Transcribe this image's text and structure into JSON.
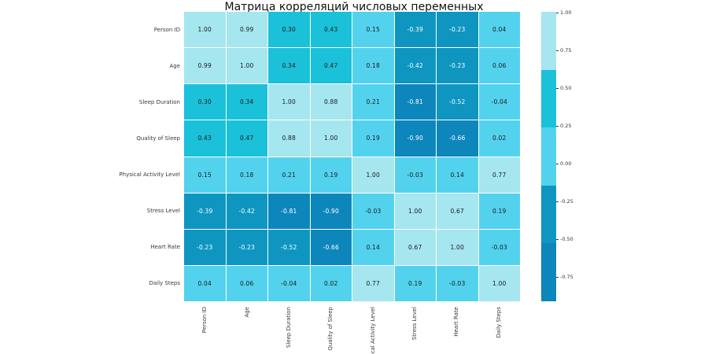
{
  "title": "Матрица корреляций числовых переменных",
  "colors": {
    "background": "#ffffff",
    "title_text": "#111111",
    "axis_label_text": "#3a3a3a",
    "cell_text_dark": "#1a1a1a",
    "cell_text_light": "#ffffff",
    "grid_line": "#ffffff",
    "tick": "#333333"
  },
  "chart_data": {
    "type": "heatmap",
    "title": "Матрица корреляций числовых переменных",
    "labels": [
      "Person ID",
      "Age",
      "Sleep Duration",
      "Quality of Sleep",
      "Physical Activity Level",
      "Stress Level",
      "Heart Rate",
      "Daily Steps"
    ],
    "matrix": [
      [
        1.0,
        0.99,
        0.3,
        0.43,
        0.15,
        -0.39,
        -0.23,
        0.04
      ],
      [
        0.99,
        1.0,
        0.34,
        0.47,
        0.18,
        -0.42,
        -0.23,
        0.06
      ],
      [
        0.3,
        0.34,
        1.0,
        0.88,
        0.21,
        -0.81,
        -0.52,
        -0.04
      ],
      [
        0.43,
        0.47,
        0.88,
        1.0,
        0.19,
        -0.9,
        -0.66,
        0.02
      ],
      [
        0.15,
        0.18,
        0.21,
        0.19,
        1.0,
        -0.03,
        0.14,
        0.77
      ],
      [
        -0.39,
        -0.42,
        -0.81,
        -0.9,
        -0.03,
        1.0,
        0.67,
        0.19
      ],
      [
        -0.23,
        -0.23,
        -0.52,
        -0.66,
        0.14,
        0.67,
        1.0,
        -0.03
      ],
      [
        0.04,
        0.06,
        -0.04,
        0.02,
        0.77,
        0.19,
        -0.03,
        1.0
      ]
    ],
    "value_format_decimals": 2,
    "colorbar": {
      "ticks": [
        "1.00",
        "0.75",
        "0.50",
        "0.25",
        "0.00",
        "-0.25",
        "-0.50",
        "-0.75"
      ],
      "vmax": 1.0,
      "vmin": -0.9,
      "bin_colors": [
        "#a5e6ef",
        "#1ac1d9",
        "#53d2ee",
        "#0e96c1",
        "#0d86bc"
      ],
      "bin_thresholds": [
        0.62,
        0.24,
        -0.14,
        -0.52
      ],
      "legend_position": "right"
    },
    "grid": true,
    "xlabel": "",
    "ylabel": ""
  }
}
